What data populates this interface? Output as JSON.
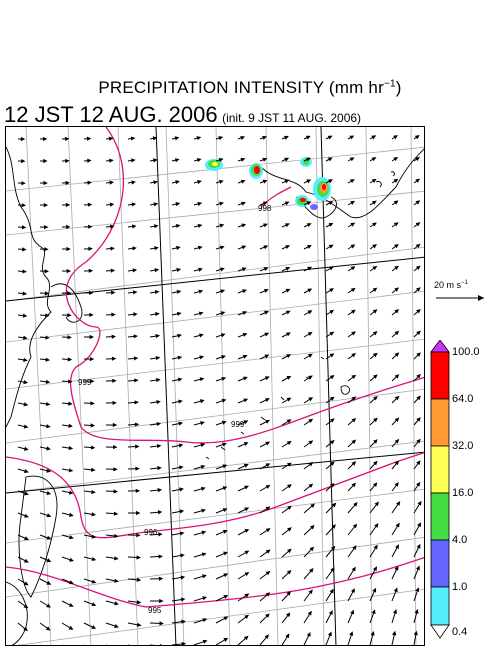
{
  "title": {
    "main": "PRECIPITATION INTENSITY (mm hr",
    "exp": "−1",
    "close": ")"
  },
  "subtitle": {
    "valid": "12 JST 12 AUG. 2006",
    "init": "(init. 9 JST 11 AUG. 2006)"
  },
  "reference_vector": {
    "label": "20 m s",
    "exp": "−1"
  },
  "colorbar": {
    "labels": [
      "100.0",
      "64.0",
      "32.0",
      "16.0",
      "4.0",
      "1.0",
      "0.4"
    ],
    "colors": [
      "#ff0000",
      "#ff9933",
      "#ffff55",
      "#44dd44",
      "#6666ff",
      "#55eeff"
    ],
    "top_arrow_color": "#cc33ff",
    "bottom_arrow_color": "#ffffff"
  },
  "isobars": {
    "color": "#dd1177",
    "labels": [
      "998",
      "999",
      "999",
      "996",
      "995"
    ]
  }
}
